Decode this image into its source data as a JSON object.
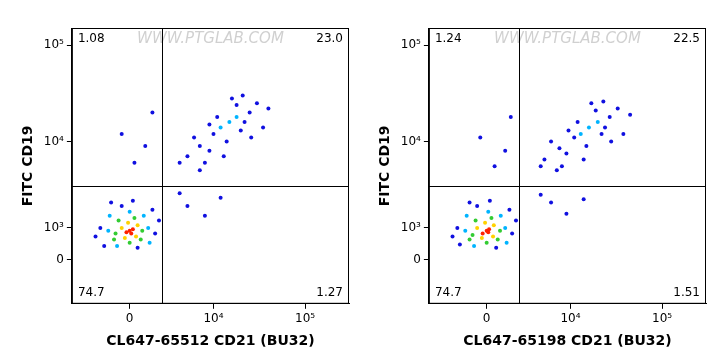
{
  "chart_data": [
    {
      "type": "scatter",
      "log": true,
      "x_label": "CL647-65512 CD21 (BU32)",
      "y_label": "FITC CD19",
      "watermark": "WWW.PTGLAB.COM",
      "xlim": [
        -5000,
        300000
      ],
      "xticks": [
        0,
        {
          "value": 10000,
          "label": "10⁴"
        },
        {
          "value": 100000,
          "label": "10⁵"
        }
      ],
      "ylim": [
        -1500,
        150000
      ],
      "yticks": [
        0,
        {
          "value": 1000,
          "label": "10³"
        },
        {
          "value": 10000,
          "label": "10⁴"
        },
        {
          "value": 100000,
          "label": "10⁵"
        }
      ],
      "quadrant_lines": {
        "x": 2250,
        "y": 3350
      },
      "quadrant_labels": {
        "top_left": 1.08,
        "top_right": {
          "value": 23,
          "label": "23.0"
        },
        "bottom_left": 74.7,
        "bottom_right": 1.27
      },
      "x": [
        0,
        -200,
        200,
        100,
        -500,
        400,
        -300,
        500,
        -100,
        -900,
        800,
        -700,
        700,
        0,
        300,
        -1000,
        -1400,
        1200,
        -800,
        900,
        0,
        -1300,
        1300,
        -2000,
        1700,
        -1700,
        1500,
        -500,
        500,
        -2400,
        2000,
        200,
        -1200,
        15000,
        12000,
        18000,
        5000,
        7000,
        9000,
        10000,
        20000,
        25000,
        8000,
        30000,
        14000,
        6000,
        18000,
        22000,
        4000,
        11000,
        35000,
        16000,
        9000,
        26000,
        40000,
        13000,
        7000,
        21000,
        300,
        1000,
        -500,
        1500,
        5000,
        8000,
        4000,
        12000
      ],
      "values": [
        900,
        850,
        950,
        800,
        1000,
        700,
        650,
        1100,
        1200,
        800,
        900,
        1300,
        600,
        500,
        1400,
        600,
        900,
        1000,
        400,
        1500,
        1700,
        1500,
        500,
        1000,
        800,
        400,
        1800,
        2000,
        350,
        700,
        1300,
        2300,
        2200,
        16000,
        14000,
        18000,
        7000,
        9000,
        8000,
        12000,
        13000,
        20000,
        6000,
        25000,
        10000,
        11000,
        24000,
        16000,
        6000,
        18000,
        14000,
        28000,
        15000,
        11000,
        22000,
        7000,
        5000,
        30000,
        6000,
        9000,
        12000,
        20000,
        2000,
        1500,
        2800,
        2500
      ],
      "colors": [
        "#ff2200",
        "#ff2200",
        "#ff2200",
        "#ff2200",
        "#ffd200",
        "#ffd200",
        "#ffd200",
        "#ffd200",
        "#ffd200",
        "#33cc33",
        "#33cc33",
        "#33cc33",
        "#33cc33",
        "#33cc33",
        "#33cc33",
        "#33cc33",
        "#00b4ff",
        "#00b4ff",
        "#00b4ff",
        "#00b4ff",
        "#00b4ff",
        "#00b4ff",
        "#00b4ff",
        "#1010e0",
        "#1010e0",
        "#1010e0",
        "#1010e0",
        "#1010e0",
        "#1010e0",
        "#1010e0",
        "#1010e0",
        "#1010e0",
        "#1010e0",
        "#00b4ff",
        "#00b4ff",
        "#00b4ff",
        "#1010e0",
        "#1010e0",
        "#1010e0",
        "#1010e0",
        "#1010e0",
        "#1010e0",
        "#1010e0",
        "#1010e0",
        "#1010e0",
        "#1010e0",
        "#1010e0",
        "#1010e0",
        "#1010e0",
        "#1010e0",
        "#1010e0",
        "#1010e0",
        "#1010e0",
        "#1010e0",
        "#1010e0",
        "#1010e0",
        "#1010e0",
        "#1010e0",
        "#1010e0",
        "#1010e0",
        "#1010e0",
        "#1010e0",
        "#1010e0",
        "#1010e0",
        "#1010e0",
        "#1010e0"
      ]
    },
    {
      "type": "scatter",
      "log": true,
      "x_label": "CL647-65198 CD21 (BU32)",
      "y_label": "FITC CD19",
      "watermark": "WWW.PTGLAB.COM",
      "xlim": [
        -5000,
        300000
      ],
      "xticks": [
        0,
        {
          "value": 10000,
          "label": "10⁴"
        },
        {
          "value": 100000,
          "label": "10⁵"
        }
      ],
      "ylim": [
        -1500,
        150000
      ],
      "yticks": [
        0,
        {
          "value": 1000,
          "label": "10³"
        },
        {
          "value": 10000,
          "label": "10⁴"
        },
        {
          "value": 100000,
          "label": "10⁵"
        }
      ],
      "quadrant_lines": {
        "x": 2250,
        "y": 3350
      },
      "quadrant_labels": {
        "top_left": 1.24,
        "top_right": 22.5,
        "bottom_left": 74.7,
        "bottom_right": 1.51
      },
      "x": [
        0,
        -250,
        150,
        100,
        -600,
        400,
        -300,
        450,
        -100,
        -900,
        850,
        -700,
        700,
        0,
        300,
        -1100,
        -1400,
        1200,
        -800,
        900,
        100,
        -1300,
        1300,
        -2000,
        1700,
        -1800,
        1500,
        -600,
        600,
        -2400,
        2000,
        200,
        -1100,
        16000,
        13000,
        20000,
        5000,
        7500,
        9000,
        11000,
        22000,
        27000,
        8000,
        33000,
        15000,
        6000,
        19000,
        24000,
        4500,
        12000,
        38000,
        17000,
        9500,
        28000,
        45000,
        14000,
        7000,
        23000,
        500,
        1200,
        -400,
        1600,
        6000,
        9000,
        4500,
        14000
      ],
      "values": [
        900,
        800,
        950,
        850,
        1000,
        700,
        650,
        1100,
        1200,
        750,
        900,
        1300,
        600,
        500,
        1400,
        600,
        900,
        1000,
        400,
        1500,
        1700,
        1500,
        500,
        1000,
        800,
        450,
        1800,
        2000,
        350,
        700,
        1300,
        2300,
        2200,
        14000,
        12000,
        16000,
        6500,
        8500,
        7500,
        11000,
        12000,
        18000,
        5500,
        22000,
        9000,
        10000,
        21000,
        14000,
        5500,
        16000,
        12000,
        25000,
        13000,
        10000,
        19000,
        6500,
        5000,
        26000,
        5500,
        8000,
        11000,
        18000,
        2200,
        1600,
        2700,
        2400
      ],
      "colors": [
        "#ff2200",
        "#ff2200",
        "#ff2200",
        "#ff2200",
        "#ffd200",
        "#ffd200",
        "#ffd200",
        "#ffd200",
        "#ffd200",
        "#33cc33",
        "#33cc33",
        "#33cc33",
        "#33cc33",
        "#33cc33",
        "#33cc33",
        "#33cc33",
        "#00b4ff",
        "#00b4ff",
        "#00b4ff",
        "#00b4ff",
        "#00b4ff",
        "#00b4ff",
        "#00b4ff",
        "#1010e0",
        "#1010e0",
        "#1010e0",
        "#1010e0",
        "#1010e0",
        "#1010e0",
        "#1010e0",
        "#1010e0",
        "#1010e0",
        "#1010e0",
        "#00b4ff",
        "#00b4ff",
        "#00b4ff",
        "#1010e0",
        "#1010e0",
        "#1010e0",
        "#1010e0",
        "#1010e0",
        "#1010e0",
        "#1010e0",
        "#1010e0",
        "#1010e0",
        "#1010e0",
        "#1010e0",
        "#1010e0",
        "#1010e0",
        "#1010e0",
        "#1010e0",
        "#1010e0",
        "#1010e0",
        "#1010e0",
        "#1010e0",
        "#1010e0",
        "#1010e0",
        "#1010e0",
        "#1010e0",
        "#1010e0",
        "#1010e0",
        "#1010e0",
        "#1010e0",
        "#1010e0",
        "#1010e0",
        "#1010e0"
      ]
    }
  ]
}
